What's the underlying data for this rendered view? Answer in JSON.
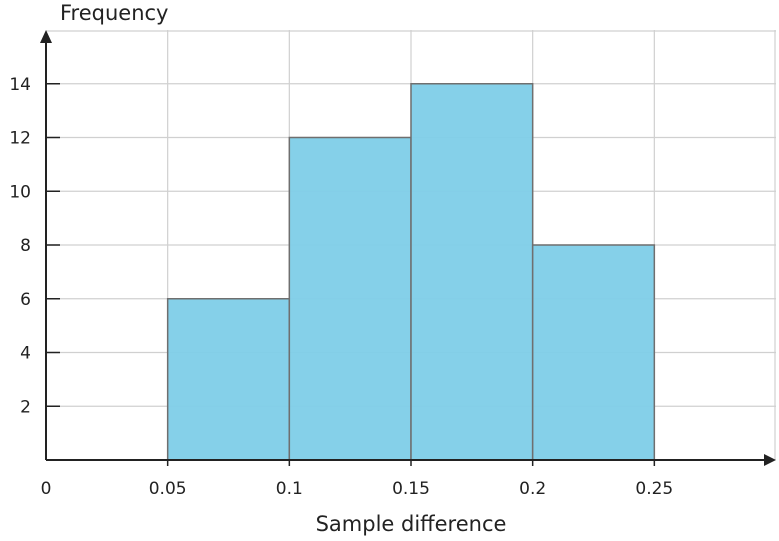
{
  "chart_data": {
    "type": "bar",
    "variant": "histogram",
    "title": "",
    "xlabel": "Sample difference",
    "ylabel": "Frequency",
    "bins": [
      {
        "start": 0.05,
        "end": 0.1,
        "value": 6
      },
      {
        "start": 0.1,
        "end": 0.15,
        "value": 12
      },
      {
        "start": 0.15,
        "end": 0.2,
        "value": 14
      },
      {
        "start": 0.2,
        "end": 0.25,
        "value": 8
      }
    ],
    "x_ticks": [
      "0",
      "0.05",
      "0.1",
      "0.15",
      "0.2",
      "0.25"
    ],
    "y_ticks": [
      "2",
      "4",
      "6",
      "8",
      "10",
      "12",
      "14"
    ],
    "xlim": [
      0,
      0.3
    ],
    "ylim": [
      0,
      16
    ],
    "grid": true,
    "bar_color": "#7ecde8",
    "bar_edge_color": "#6f6f6f"
  }
}
